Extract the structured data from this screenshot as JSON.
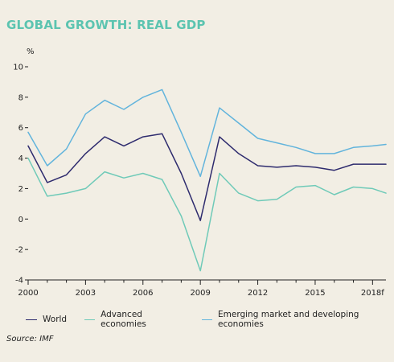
{
  "title": "GLOBAL GROWTH: REAL GDP",
  "source": "Source: IMF",
  "colors": {
    "background": "#f2eee4",
    "title": "#5cc4b0",
    "world": "#2e2b6e",
    "advanced": "#6fcab8",
    "emerging": "#62b4dc"
  },
  "chart_data": {
    "type": "line",
    "ylabel": "%",
    "ylim": [
      -4,
      10
    ],
    "yticks": [
      10,
      8,
      6,
      4,
      2,
      0,
      -2,
      -4
    ],
    "xlim": [
      2000,
      2018.7
    ],
    "xticks": [
      2000,
      2003,
      2006,
      2009,
      2012,
      2015,
      2018
    ],
    "xtick_labels": [
      "2000",
      "2003",
      "2006",
      "2009",
      "2012",
      "2015",
      "2018f"
    ],
    "x": [
      2000,
      2001,
      2002,
      2003,
      2004,
      2005,
      2006,
      2007,
      2008,
      2009,
      2010,
      2011,
      2012,
      2013,
      2014,
      2015,
      2016,
      2017,
      2018,
      2018.7
    ],
    "grid": false,
    "legend_position": "bottom",
    "series": [
      {
        "name": "World",
        "color_key": "world",
        "values": [
          4.8,
          2.4,
          2.9,
          4.3,
          5.4,
          4.8,
          5.4,
          5.6,
          3.0,
          -0.1,
          5.4,
          4.3,
          3.5,
          3.4,
          3.5,
          3.4,
          3.2,
          3.6,
          3.6,
          3.6
        ]
      },
      {
        "name": "Advanced economies",
        "color_key": "advanced",
        "values": [
          4.0,
          1.5,
          1.7,
          2.0,
          3.1,
          2.7,
          3.0,
          2.6,
          0.2,
          -3.4,
          3.0,
          1.7,
          1.2,
          1.3,
          2.1,
          2.2,
          1.6,
          2.1,
          2.0,
          1.7
        ]
      },
      {
        "name": "Emerging market and developing economies",
        "color_key": "emerging",
        "values": [
          5.7,
          3.5,
          4.6,
          6.9,
          7.8,
          7.2,
          8.0,
          8.5,
          5.7,
          2.8,
          7.3,
          6.3,
          5.3,
          5.0,
          4.7,
          4.3,
          4.3,
          4.7,
          4.8,
          4.9
        ]
      }
    ]
  }
}
